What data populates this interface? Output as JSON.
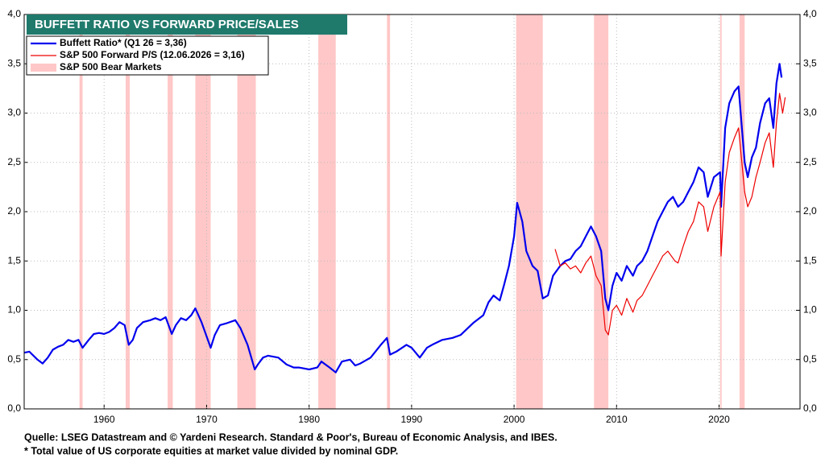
{
  "chart_data": {
    "type": "line",
    "title": "BUFFETT RATIO VS FORWARD PRICE/SALES",
    "notes": [
      "Quelle: LSEG Datastream and © Yardeni Research. Standard & Poor's, Bureau of Economic Analysis, and IBES.",
      "* Total value of US corporate equities at market value divided by nominal GDP."
    ],
    "xlim": [
      1952.2,
      2027.9
    ],
    "xticks": [
      1960,
      1970,
      1980,
      1990,
      2000,
      2010,
      2020
    ],
    "ylim": [
      0,
      4
    ],
    "yticks": [
      {
        "value": 0,
        "label": "0,0"
      },
      {
        "value": 0.5,
        "label": "0,5"
      },
      {
        "value": 1,
        "label": "1,0"
      },
      {
        "value": 1.5,
        "label": "1,5"
      },
      {
        "value": 2,
        "label": "2,0"
      },
      {
        "value": 2.5,
        "label": "2,5"
      },
      {
        "value": 3,
        "label": "3,0"
      },
      {
        "value": 3.5,
        "label": "3,5"
      },
      {
        "value": 4,
        "label": "4,0"
      }
    ],
    "y2lim": [
      0,
      4
    ],
    "y2ticks": [
      {
        "value": 0,
        "label": "0,0"
      },
      {
        "value": 0.5,
        "label": "0,5"
      },
      {
        "value": 1,
        "label": "1,0"
      },
      {
        "value": 1.5,
        "label": "1,5"
      },
      {
        "value": 2,
        "label": "2,0"
      },
      {
        "value": 2.5,
        "label": "2,5"
      },
      {
        "value": 3,
        "label": "3,0"
      },
      {
        "value": 3.5,
        "label": "3,5"
      },
      {
        "value": 4,
        "label": "4,0"
      }
    ],
    "grid": true,
    "series": [
      {
        "name": "Buffett Ratio* (Q1 26 = 3,36)",
        "color": "#0000ee",
        "width": 2.2,
        "x": [
          1952.2,
          1952.7,
          1953.5,
          1954,
          1954.5,
          1955,
          1955.5,
          1956,
          1956.5,
          1957,
          1957.5,
          1957.9,
          1958.5,
          1959,
          1959.5,
          1960,
          1960.5,
          1961,
          1961.5,
          1962,
          1962.4,
          1962.8,
          1963.2,
          1963.8,
          1964.5,
          1965,
          1965.5,
          1966,
          1966.6,
          1967,
          1967.5,
          1968,
          1968.5,
          1968.9,
          1969.5,
          1970.4,
          1970.8,
          1971.3,
          1972,
          1972.8,
          1973.3,
          1974,
          1974.7,
          1975,
          1975.5,
          1976,
          1977,
          1977.8,
          1978.5,
          1979,
          1980,
          1980.8,
          1981.2,
          1982,
          1982.6,
          1983.2,
          1984,
          1984.5,
          1985,
          1986,
          1987,
          1987.6,
          1987.9,
          1988.5,
          1989.5,
          1990,
          1990.8,
          1991.5,
          1992,
          1993,
          1994,
          1994.8,
          1995.5,
          1996,
          1997,
          1997.5,
          1998,
          1998.6,
          1999,
          1999.5,
          2000,
          2000.3,
          2000.8,
          2001.2,
          2001.8,
          2002.3,
          2002.8,
          2003.3,
          2003.8,
          2004.5,
          2005,
          2005.5,
          2006,
          2006.5,
          2007,
          2007.5,
          2008,
          2008.5,
          2008.9,
          2009.2,
          2009.6,
          2010,
          2010.5,
          2011,
          2011.6,
          2012,
          2012.5,
          2013,
          2013.5,
          2014,
          2014.5,
          2015,
          2015.5,
          2016,
          2016.5,
          2017,
          2017.5,
          2018,
          2018.5,
          2018.9,
          2019.5,
          2020.1,
          2020.2,
          2020.6,
          2021,
          2021.5,
          2021.9,
          2022.5,
          2022.8,
          2023.2,
          2023.6,
          2024,
          2024.5,
          2024.9,
          2025.3,
          2025.6,
          2025.9,
          2026.1
        ],
        "values": [
          0.57,
          0.58,
          0.5,
          0.46,
          0.52,
          0.6,
          0.63,
          0.65,
          0.7,
          0.68,
          0.7,
          0.62,
          0.7,
          0.76,
          0.77,
          0.76,
          0.78,
          0.82,
          0.88,
          0.85,
          0.65,
          0.7,
          0.82,
          0.88,
          0.9,
          0.92,
          0.9,
          0.93,
          0.76,
          0.85,
          0.92,
          0.9,
          0.95,
          1.02,
          0.88,
          0.62,
          0.75,
          0.85,
          0.87,
          0.9,
          0.82,
          0.65,
          0.4,
          0.45,
          0.52,
          0.54,
          0.52,
          0.45,
          0.42,
          0.42,
          0.4,
          0.42,
          0.48,
          0.42,
          0.37,
          0.48,
          0.5,
          0.44,
          0.46,
          0.52,
          0.65,
          0.72,
          0.55,
          0.58,
          0.65,
          0.62,
          0.52,
          0.62,
          0.65,
          0.7,
          0.72,
          0.75,
          0.82,
          0.87,
          0.95,
          1.08,
          1.15,
          1.1,
          1.25,
          1.45,
          1.75,
          2.09,
          1.9,
          1.6,
          1.45,
          1.4,
          1.12,
          1.15,
          1.35,
          1.45,
          1.5,
          1.52,
          1.6,
          1.65,
          1.75,
          1.85,
          1.75,
          1.6,
          1.12,
          1.0,
          1.25,
          1.38,
          1.3,
          1.45,
          1.35,
          1.45,
          1.5,
          1.6,
          1.75,
          1.9,
          2.0,
          2.1,
          2.15,
          2.05,
          2.1,
          2.2,
          2.3,
          2.45,
          2.4,
          2.15,
          2.35,
          2.4,
          2.05,
          2.85,
          3.1,
          3.22,
          3.27,
          2.5,
          2.35,
          2.55,
          2.65,
          2.9,
          3.1,
          3.15,
          2.85,
          3.3,
          3.5,
          3.36
        ]
      },
      {
        "name": "S&P 500 Forward P/S (12.06.2026 = 3,16)",
        "color": "#ee0000",
        "width": 1.2,
        "x": [
          2004.0,
          2004.5,
          2005,
          2005.5,
          2006,
          2006.5,
          2007,
          2007.5,
          2008,
          2008.5,
          2008.9,
          2009.2,
          2009.6,
          2010,
          2010.5,
          2011,
          2011.6,
          2012,
          2012.5,
          2013,
          2013.5,
          2014,
          2014.5,
          2015,
          2015.7,
          2016,
          2016.5,
          2017,
          2017.5,
          2018,
          2018.5,
          2018.9,
          2019.5,
          2020.1,
          2020.2,
          2020.6,
          2021,
          2021.5,
          2021.9,
          2022.5,
          2022.8,
          2023.2,
          2023.6,
          2024,
          2024.5,
          2024.9,
          2025.3,
          2025.6,
          2025.9,
          2026.2,
          2026.45
        ],
        "values": [
          1.62,
          1.45,
          1.48,
          1.42,
          1.45,
          1.38,
          1.48,
          1.55,
          1.35,
          1.25,
          0.8,
          0.75,
          1.0,
          1.05,
          0.95,
          1.12,
          0.98,
          1.1,
          1.15,
          1.25,
          1.35,
          1.45,
          1.55,
          1.6,
          1.5,
          1.48,
          1.65,
          1.8,
          1.9,
          2.1,
          2.05,
          1.8,
          2.05,
          2.2,
          1.55,
          2.3,
          2.6,
          2.75,
          2.85,
          2.2,
          2.05,
          2.15,
          2.35,
          2.5,
          2.7,
          2.8,
          2.45,
          2.9,
          3.2,
          3.0,
          3.16
        ]
      }
    ],
    "bands": {
      "name": "S&P 500 Bear Markets",
      "color": "#ffc7c7",
      "ranges": [
        [
          1957.6,
          1957.9
        ],
        [
          1962.1,
          1962.5
        ],
        [
          1966.2,
          1966.7
        ],
        [
          1968.9,
          1970.4
        ],
        [
          1973.0,
          1974.8
        ],
        [
          1980.9,
          1982.6
        ],
        [
          1987.6,
          1987.9
        ],
        [
          2000.2,
          2002.8
        ],
        [
          2007.8,
          2009.2
        ],
        [
          2020.1,
          2020.25
        ],
        [
          2022.0,
          2022.5
        ]
      ]
    }
  }
}
